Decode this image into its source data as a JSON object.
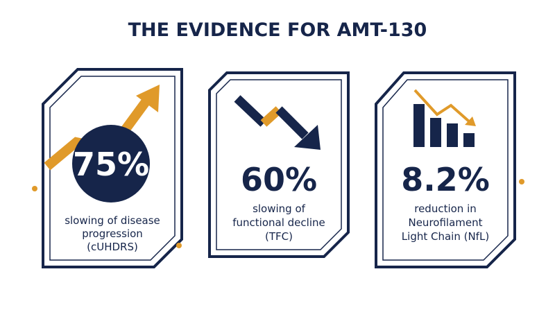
{
  "header": {
    "title": "THE EVIDENCE FOR AMT-130"
  },
  "cards": [
    {
      "stat": "75%",
      "lines": [
        "slowing of disease",
        "progression",
        "(cUHDRS)"
      ]
    },
    {
      "stat": "60%",
      "lines": [
        "slowing of",
        "functional decline",
        "(TFC)"
      ]
    },
    {
      "stat": "8.2%",
      "lines": [
        "reduction in",
        "Neurofilament",
        "Light Chain (NfL)"
      ]
    }
  ]
}
